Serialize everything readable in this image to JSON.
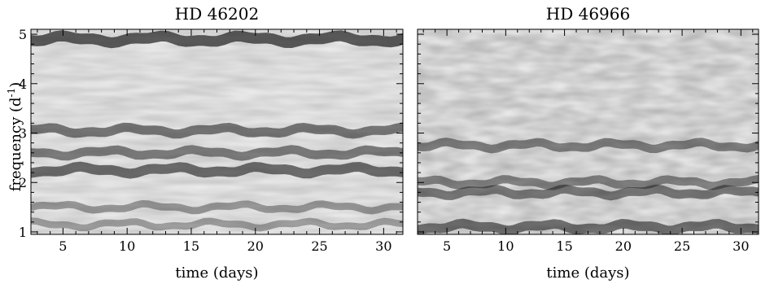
{
  "figure": {
    "ylabel_main": "frequency (d",
    "ylabel_sup": "-1",
    "ylabel_close": ")"
  },
  "chart_data": [
    {
      "type": "heatmap",
      "title": "HD 46202",
      "xlabel": "time (days)",
      "ylabel": "frequency (d-1)",
      "xlim": [
        2.5,
        31.5
      ],
      "ylim": [
        0.95,
        5.1
      ],
      "xticks": [
        5,
        10,
        15,
        20,
        25,
        30
      ],
      "xtick_labels": [
        "5",
        "10",
        "15",
        "20",
        "25",
        "30"
      ],
      "yticks": [
        1,
        2,
        3,
        4,
        5
      ],
      "ytick_labels": [
        "1",
        "2",
        "3",
        "4",
        "5"
      ],
      "colormap": "grayscale (darker = higher amplitude)",
      "ridges": [
        {
          "frequency": 4.9,
          "strength": 0.9
        },
        {
          "frequency": 3.05,
          "strength": 0.65
        },
        {
          "frequency": 2.6,
          "strength": 0.6
        },
        {
          "frequency": 2.25,
          "strength": 0.75
        },
        {
          "frequency": 1.5,
          "strength": 0.35
        },
        {
          "frequency": 1.15,
          "strength": 0.3
        }
      ]
    },
    {
      "type": "heatmap",
      "title": "HD 46966",
      "xlabel": "time (days)",
      "ylabel": "",
      "xlim": [
        2.5,
        31.5
      ],
      "ylim": [
        0.95,
        5.1
      ],
      "xticks": [
        5,
        10,
        15,
        20,
        25,
        30
      ],
      "xtick_labels": [
        "5",
        "10",
        "15",
        "20",
        "25",
        "30"
      ],
      "yticks": [
        1,
        2,
        3,
        4,
        5
      ],
      "ytick_labels": [],
      "colormap": "grayscale (darker = higher amplitude)",
      "ridges": [
        {
          "frequency": 2.75,
          "strength": 0.55
        },
        {
          "frequency": 2.0,
          "strength": 0.5
        },
        {
          "frequency": 1.8,
          "strength": 0.6
        },
        {
          "frequency": 1.1,
          "strength": 0.7
        }
      ]
    }
  ]
}
